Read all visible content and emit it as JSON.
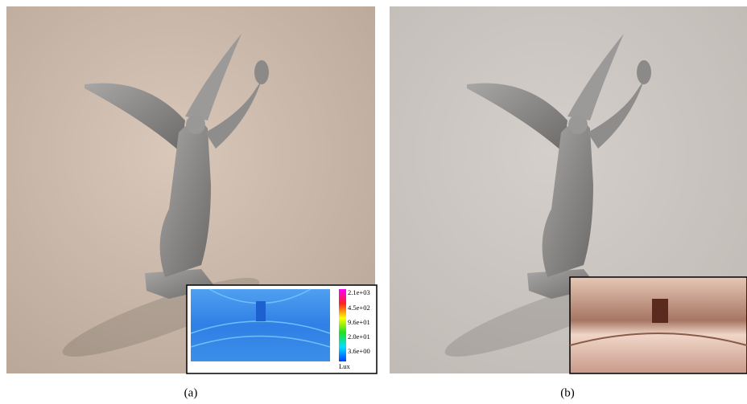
{
  "panels": [
    {
      "caption": "(a)",
      "inset": {
        "colorbar_ticks": [
          "2.1e+03",
          "4.5e+02",
          "9.6e+01",
          "2.0e+01",
          "3.6e+00"
        ],
        "unit": "Lux"
      }
    },
    {
      "caption": "(b)"
    }
  ]
}
